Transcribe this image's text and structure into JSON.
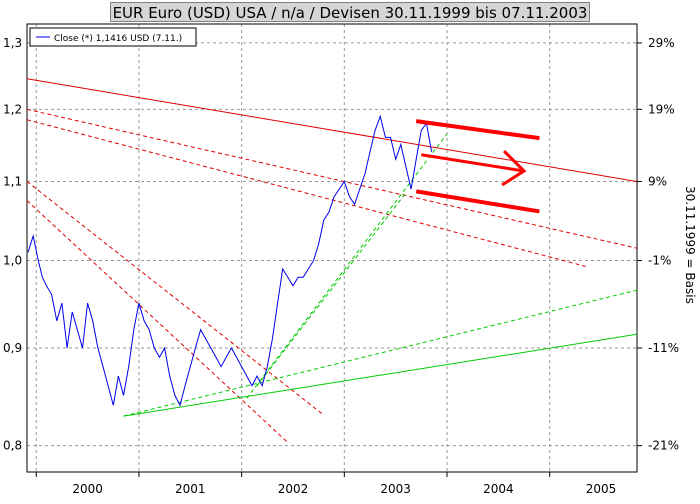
{
  "title": "EUR Euro (USD) USA / n/a / Devisen 30.11.1999 bis 07.11.2003",
  "legend": {
    "label": "Close (*) 1,1416 USD (7.11.)"
  },
  "right_axis_label": "30.11.1999 = Basis",
  "colors": {
    "price_line": "#0000ee",
    "resistance": "#e00000",
    "support": "#00cc00",
    "annotation": "#ff0000",
    "grid": "#999999",
    "title_bg": "#d6d6d6"
  },
  "chart_data": {
    "type": "line",
    "x_ticks": [
      "2000",
      "2001",
      "2002",
      "2003",
      "2004",
      "2005"
    ],
    "y_ticks_left": [
      "1,3",
      "1,2",
      "1,1",
      "1,0",
      "0,9",
      "0,8"
    ],
    "y_ticks_right": [
      "29%",
      "19%",
      "9%",
      "-1%",
      "-11%",
      "-21%"
    ],
    "x_range": [
      1999.91,
      2005.85
    ],
    "y_range": [
      0.775,
      1.33
    ],
    "y_scale": "log",
    "grid": true,
    "legend_position": "top-left",
    "series": [
      {
        "name": "Close (*) 1,1416 USD (7.11.)",
        "x": [
          1999.92,
          1999.97,
          2000.02,
          2000.06,
          2000.1,
          2000.15,
          2000.2,
          2000.25,
          2000.3,
          2000.35,
          2000.4,
          2000.45,
          2000.5,
          2000.55,
          2000.6,
          2000.65,
          2000.7,
          2000.75,
          2000.8,
          2000.85,
          2000.9,
          2000.95,
          2001.0,
          2001.05,
          2001.1,
          2001.15,
          2001.2,
          2001.25,
          2001.3,
          2001.35,
          2001.4,
          2001.45,
          2001.5,
          2001.55,
          2001.6,
          2001.65,
          2001.7,
          2001.75,
          2001.8,
          2001.85,
          2001.9,
          2001.95,
          2002.0,
          2002.05,
          2002.1,
          2002.15,
          2002.2,
          2002.25,
          2002.3,
          2002.35,
          2002.4,
          2002.45,
          2002.5,
          2002.55,
          2002.6,
          2002.65,
          2002.7,
          2002.75,
          2002.8,
          2002.85,
          2002.9,
          2002.95,
          2003.0,
          2003.05,
          2003.1,
          2003.15,
          2003.2,
          2003.25,
          2003.3,
          2003.35,
          2003.4,
          2003.45,
          2003.5,
          2003.55,
          2003.6,
          2003.65,
          2003.7,
          2003.75,
          2003.8,
          2003.85
        ],
        "values": [
          1.01,
          1.03,
          1.0,
          0.98,
          0.97,
          0.96,
          0.93,
          0.95,
          0.9,
          0.94,
          0.92,
          0.9,
          0.95,
          0.93,
          0.9,
          0.88,
          0.86,
          0.84,
          0.87,
          0.85,
          0.88,
          0.92,
          0.95,
          0.93,
          0.92,
          0.9,
          0.89,
          0.9,
          0.87,
          0.85,
          0.84,
          0.86,
          0.88,
          0.9,
          0.92,
          0.91,
          0.9,
          0.89,
          0.88,
          0.89,
          0.9,
          0.89,
          0.88,
          0.87,
          0.86,
          0.87,
          0.86,
          0.88,
          0.91,
          0.95,
          0.99,
          0.98,
          0.97,
          0.98,
          0.98,
          0.99,
          1.0,
          1.02,
          1.05,
          1.06,
          1.08,
          1.09,
          1.1,
          1.08,
          1.07,
          1.09,
          1.11,
          1.14,
          1.17,
          1.19,
          1.16,
          1.16,
          1.13,
          1.15,
          1.12,
          1.09,
          1.13,
          1.17,
          1.18,
          1.14
        ]
      }
    ],
    "trendlines": [
      {
        "style": "solid",
        "color": "resistance",
        "x": [
          1999.91,
          2005.85
        ],
        "y": [
          1.245,
          1.1
        ]
      },
      {
        "style": "dashed",
        "color": "resistance",
        "x": [
          1999.91,
          2005.85
        ],
        "y": [
          1.2,
          1.015
        ]
      },
      {
        "style": "dashed",
        "color": "resistance",
        "x": [
          1999.91,
          2005.35
        ],
        "y": [
          1.185,
          0.993
        ]
      },
      {
        "style": "dashed",
        "color": "resistance",
        "x": [
          1999.91,
          2002.8
        ],
        "y": [
          1.1,
          0.83
        ]
      },
      {
        "style": "dashed",
        "color": "resistance",
        "x": [
          1999.91,
          2002.45
        ],
        "y": [
          1.075,
          0.803
        ]
      },
      {
        "style": "solid",
        "color": "support",
        "x": [
          2000.85,
          2005.85
        ],
        "y": [
          0.829,
          0.915
        ]
      },
      {
        "style": "dashed",
        "color": "support",
        "x": [
          2000.85,
          2005.85
        ],
        "y": [
          0.829,
          0.965
        ]
      },
      {
        "style": "dashed",
        "color": "support",
        "x": [
          2002.05,
          2004.0
        ],
        "y": [
          0.847,
          1.165
        ]
      },
      {
        "style": "dashed",
        "color": "support",
        "x": [
          2002.15,
          2003.6
        ],
        "y": [
          0.86,
          1.085
        ]
      }
    ],
    "annotations": [
      {
        "shape": "thick-line",
        "x": [
          2003.7,
          2004.9
        ],
        "y": [
          1.183,
          1.159
        ]
      },
      {
        "shape": "thick-line",
        "x": [
          2003.7,
          2004.9
        ],
        "y": [
          1.087,
          1.061
        ]
      },
      {
        "shape": "arrow",
        "x": [
          2003.75,
          2004.75
        ],
        "y": [
          1.136,
          1.114
        ]
      }
    ]
  }
}
